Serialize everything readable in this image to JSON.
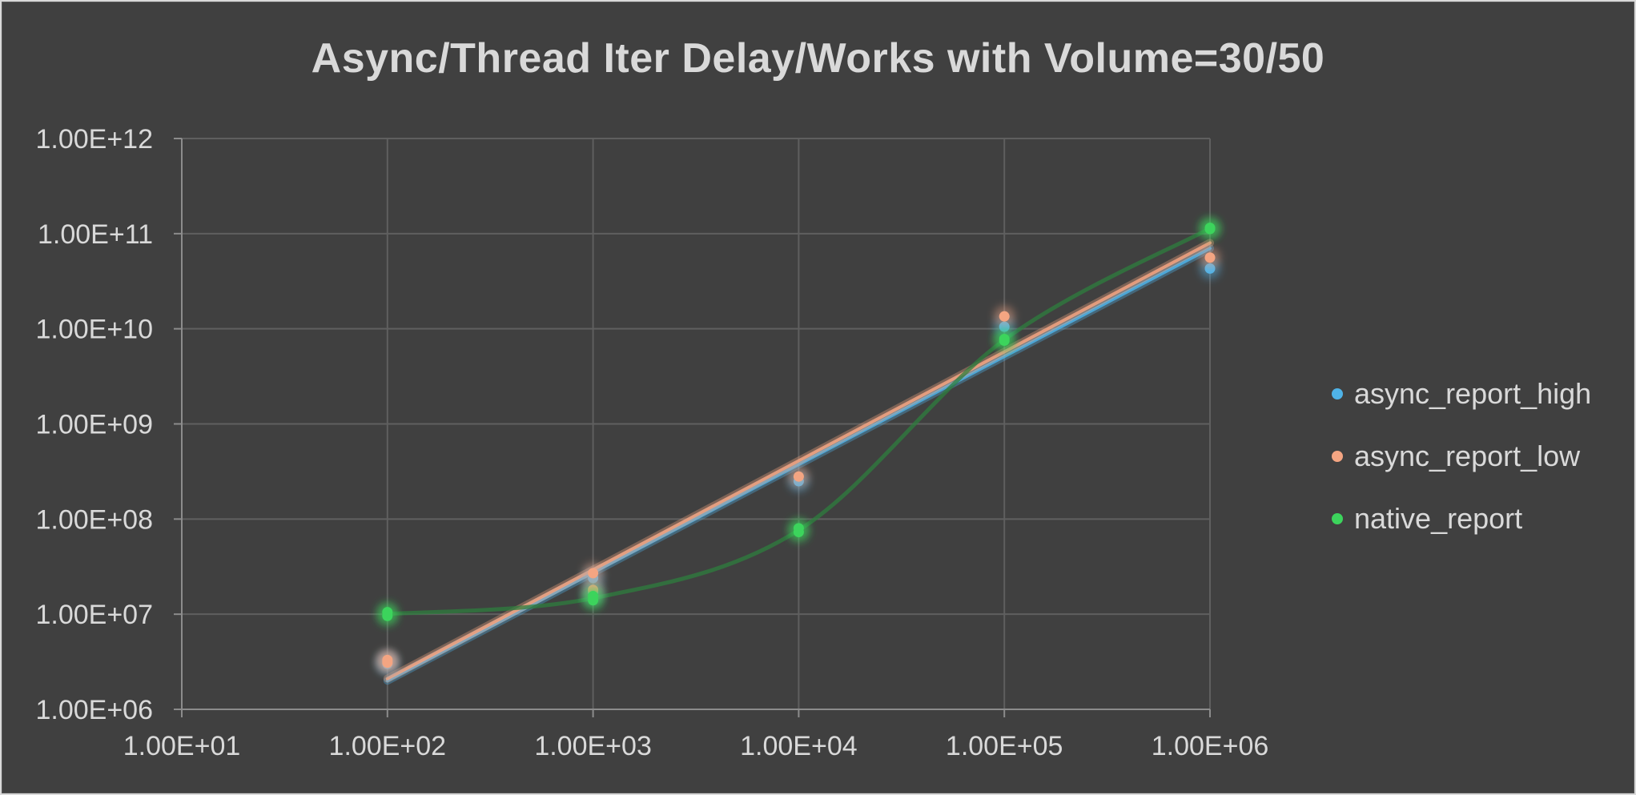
{
  "chart_data": {
    "type": "scatter",
    "title": "Async/Thread Iter Delay/Works with Volume=30/50",
    "xscale": "log",
    "yscale": "log",
    "xlim": [
      10,
      1000000
    ],
    "ylim": [
      1000000,
      1000000000000
    ],
    "grid": true,
    "legend_position": "right",
    "x_tick_labels": [
      "1.00E+01",
      "1.00E+02",
      "1.00E+03",
      "1.00E+04",
      "1.00E+05",
      "1.00E+06"
    ],
    "y_tick_labels": [
      "1.00E+12",
      "1.00E+11",
      "1.00E+10",
      "1.00E+09",
      "1.00E+08",
      "1.00E+07",
      "1.00E+06"
    ],
    "series": [
      {
        "name": "async_report_high",
        "color": "#4fb3e8",
        "points": [
          [
            100,
            3200000
          ],
          [
            100,
            3000000
          ],
          [
            1000,
            24000000
          ],
          [
            1000,
            17000000
          ],
          [
            10000,
            250000000
          ],
          [
            100000,
            10500000000
          ],
          [
            1000000,
            43000000000
          ]
        ],
        "trendline": {
          "type": "power",
          "from": [
            100,
            2000000
          ],
          "to": [
            1000000,
            70000000000
          ]
        }
      },
      {
        "name": "async_report_low",
        "color": "#f4a582",
        "points": [
          [
            100,
            3300000
          ],
          [
            100,
            3100000
          ],
          [
            1000,
            27000000
          ],
          [
            1000,
            18000000
          ],
          [
            10000,
            280000000
          ],
          [
            100000,
            13500000000
          ],
          [
            1000000,
            56000000000
          ]
        ],
        "trendline": {
          "type": "power",
          "from": [
            100,
            2100000
          ],
          "to": [
            1000000,
            80000000000
          ]
        }
      },
      {
        "name": "native_report",
        "color": "#3cd45c",
        "points": [
          [
            100,
            10500000
          ],
          [
            100,
            9600000
          ],
          [
            1000,
            15500000
          ],
          [
            1000,
            14000000
          ],
          [
            10000,
            80000000
          ],
          [
            10000,
            73000000
          ],
          [
            100000,
            7800000000
          ],
          [
            100000,
            7500000000
          ],
          [
            1000000,
            115000000000
          ],
          [
            1000000,
            112000000000
          ]
        ],
        "smoothed_line": true
      }
    ]
  }
}
